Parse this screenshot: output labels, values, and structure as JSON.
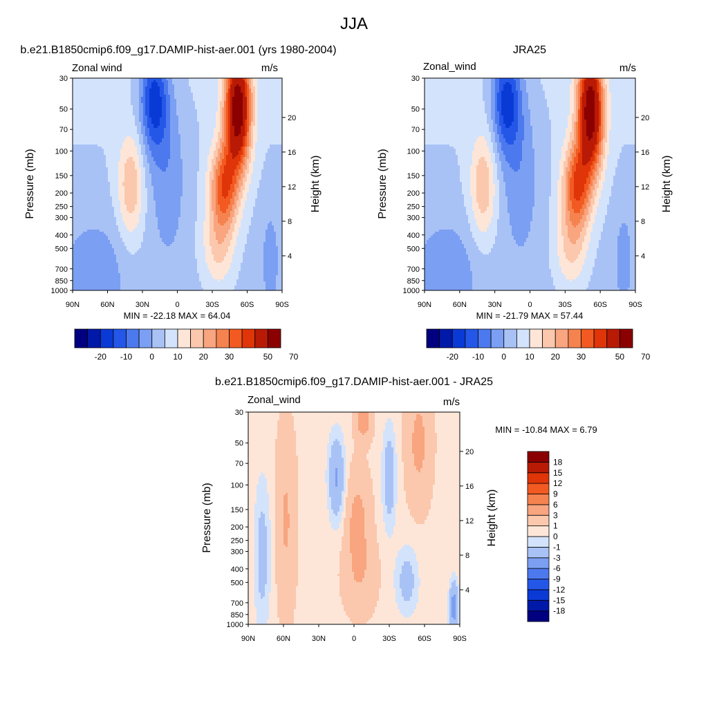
{
  "figure_title": "JJA",
  "chart_data": [
    {
      "type": "heatmap",
      "title": "b.e21.B1850cmip6.f09_g17.DAMIP-hist-aer.001 (yrs 1980-2004)",
      "left_label": "Zonal wind",
      "right_label": "m/s",
      "ylabel": "Pressure (mb)",
      "ylabel_right": "Height (km)",
      "x_ticks": [
        "90N",
        "60N",
        "30N",
        "0",
        "30S",
        "60S",
        "90S"
      ],
      "x_values": [
        90,
        60,
        30,
        0,
        -30,
        -60,
        -90
      ],
      "y_ticks": [
        "30",
        "50",
        "70",
        "100",
        "150",
        "200",
        "250",
        "300",
        "400",
        "500",
        "700",
        "850",
        "1000"
      ],
      "y_values": [
        30,
        50,
        70,
        100,
        150,
        200,
        250,
        300,
        400,
        500,
        700,
        850,
        1000
      ],
      "height_ticks": [
        "4",
        "8",
        "12",
        "16",
        "20"
      ],
      "height_values": [
        4,
        8,
        12,
        16,
        20
      ],
      "min_max": "MIN = -22.18  MAX =  64.04",
      "colorbar_levels": [
        -25,
        -20,
        -15,
        -10,
        -5,
        0,
        5,
        10,
        15,
        20,
        25,
        30,
        35,
        40,
        50,
        60,
        70
      ],
      "colorbar_labels": [
        "-20",
        "-10",
        "0",
        "10",
        "20",
        "30",
        "50",
        "70"
      ],
      "data_min": -22.18,
      "data_max": 64.04
    },
    {
      "type": "heatmap",
      "title": "JRA25",
      "left_label": "Zonal_wind",
      "right_label": "m/s",
      "ylabel": "Pressure (mb)",
      "ylabel_right": "Height (km)",
      "x_ticks": [
        "90N",
        "60N",
        "30N",
        "0",
        "30S",
        "60S",
        "90S"
      ],
      "x_values": [
        90,
        60,
        30,
        0,
        -30,
        -60,
        -90
      ],
      "y_ticks": [
        "30",
        "50",
        "70",
        "100",
        "150",
        "200",
        "250",
        "300",
        "400",
        "500",
        "700",
        "850",
        "1000"
      ],
      "y_values": [
        30,
        50,
        70,
        100,
        150,
        200,
        250,
        300,
        400,
        500,
        700,
        850,
        1000
      ],
      "height_ticks": [
        "4",
        "8",
        "12",
        "16",
        "20"
      ],
      "height_values": [
        4,
        8,
        12,
        16,
        20
      ],
      "min_max": "MIN = -21.79  MAX =  57.44",
      "colorbar_levels": [
        -25,
        -20,
        -15,
        -10,
        -5,
        0,
        5,
        10,
        15,
        20,
        25,
        30,
        35,
        40,
        50,
        60,
        70
      ],
      "colorbar_labels": [
        "-20",
        "-10",
        "0",
        "10",
        "20",
        "30",
        "50",
        "70"
      ],
      "data_min": -21.79,
      "data_max": 57.44
    },
    {
      "type": "heatmap",
      "title": "b.e21.B1850cmip6.f09_g17.DAMIP-hist-aer.001 - JRA25",
      "left_label": "Zonal_wind",
      "right_label": "m/s",
      "ylabel": "Pressure (mb)",
      "ylabel_right": "Height (km)",
      "x_ticks": [
        "90N",
        "60N",
        "30N",
        "0",
        "30S",
        "60S",
        "90S"
      ],
      "x_values": [
        90,
        60,
        30,
        0,
        -30,
        -60,
        -90
      ],
      "y_ticks": [
        "30",
        "50",
        "70",
        "100",
        "150",
        "200",
        "250",
        "300",
        "400",
        "500",
        "700",
        "850",
        "1000"
      ],
      "y_values": [
        30,
        50,
        70,
        100,
        150,
        200,
        250,
        300,
        400,
        500,
        700,
        850,
        1000
      ],
      "height_ticks": [
        "4",
        "8",
        "12",
        "16",
        "20"
      ],
      "height_values": [
        4,
        8,
        12,
        16,
        20
      ],
      "min_max": "MIN = -10.84  MAX =   6.79",
      "colorbar_levels": [
        -18,
        -15,
        -12,
        -9,
        -6,
        -3,
        -1,
        0,
        1,
        3,
        6,
        9,
        12,
        15,
        18
      ],
      "colorbar_labels": [
        "18",
        "15",
        "12",
        "9",
        "6",
        "3",
        "1",
        "0",
        "-1",
        "-3",
        "-6",
        "-9",
        "-12",
        "-15",
        "-18"
      ],
      "data_min": -10.84,
      "data_max": 6.79
    }
  ],
  "palette": [
    "#000080",
    "#0019a8",
    "#0a3ad6",
    "#2457e8",
    "#4d79ee",
    "#7b9ff2",
    "#a9c2f6",
    "#d3e3fb",
    "#fde6d8",
    "#fbc8ad",
    "#f8a580",
    "#f5834f",
    "#f25a22",
    "#e03508",
    "#b81a06",
    "#8b0000"
  ]
}
